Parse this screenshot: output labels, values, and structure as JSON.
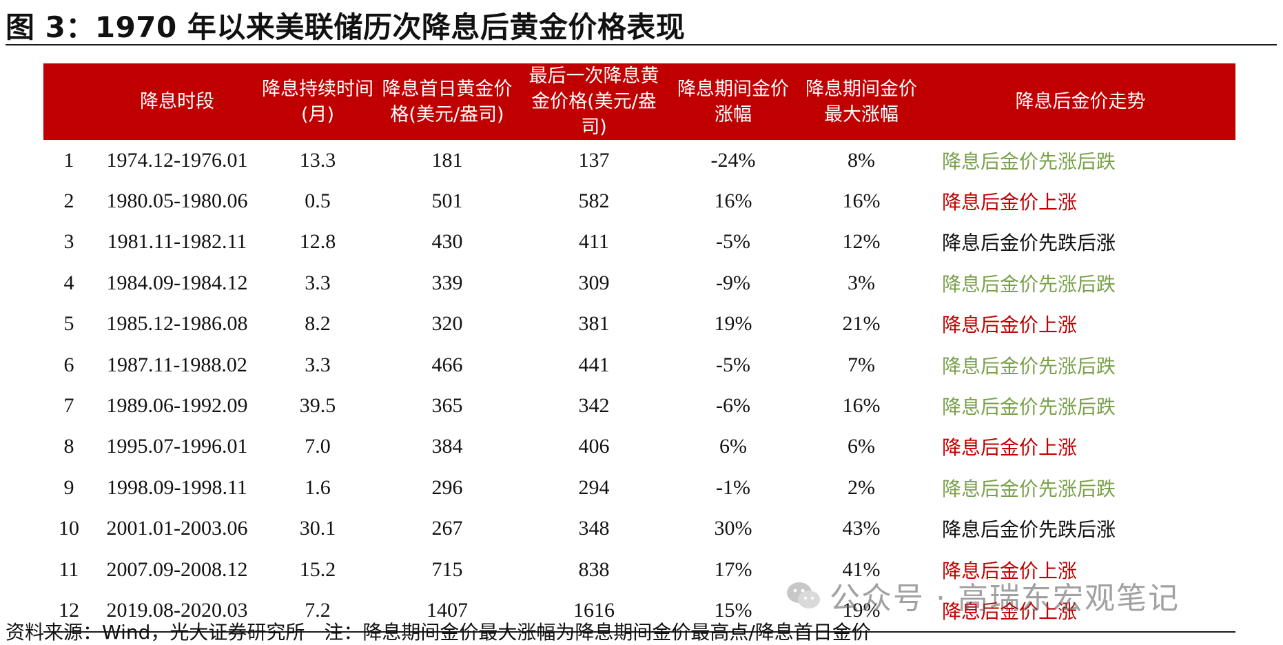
{
  "figure_title": "图 3：1970 年以来美联储历次降息后黄金价格表现",
  "table": {
    "headers": [
      "",
      "降息时段",
      "降息持续时间(月)",
      "降息首日黄金价格(美元/盎司)",
      "最后一次降息黄金价格(美元/盎司)",
      "降息期间金价涨幅",
      "降息期间金价最大涨幅",
      "降息后金价走势"
    ],
    "rows": [
      {
        "no": "1",
        "period": "1974.12-1976.01",
        "months": "13.3",
        "first_day_price": "181",
        "last_cut_price": "137",
        "change": "-24%",
        "max_gain": "8%",
        "trend": "降息后金价先涨后跌",
        "trend_color": "#7aa04a"
      },
      {
        "no": "2",
        "period": "1980.05-1980.06",
        "months": "0.5",
        "first_day_price": "501",
        "last_cut_price": "582",
        "change": "16%",
        "max_gain": "16%",
        "trend": "降息后金价上涨",
        "trend_color": "#c00000"
      },
      {
        "no": "3",
        "period": "1981.11-1982.11",
        "months": "12.8",
        "first_day_price": "430",
        "last_cut_price": "411",
        "change": "-5%",
        "max_gain": "12%",
        "trend": "降息后金价先跌后涨",
        "trend_color": "#111111"
      },
      {
        "no": "4",
        "period": "1984.09-1984.12",
        "months": "3.3",
        "first_day_price": "339",
        "last_cut_price": "309",
        "change": "-9%",
        "max_gain": "3%",
        "trend": "降息后金价先涨后跌",
        "trend_color": "#7aa04a"
      },
      {
        "no": "5",
        "period": "1985.12-1986.08",
        "months": "8.2",
        "first_day_price": "320",
        "last_cut_price": "381",
        "change": "19%",
        "max_gain": "21%",
        "trend": "降息后金价上涨",
        "trend_color": "#c00000"
      },
      {
        "no": "6",
        "period": "1987.11-1988.02",
        "months": "3.3",
        "first_day_price": "466",
        "last_cut_price": "441",
        "change": "-5%",
        "max_gain": "7%",
        "trend": "降息后金价先涨后跌",
        "trend_color": "#7aa04a"
      },
      {
        "no": "7",
        "period": "1989.06-1992.09",
        "months": "39.5",
        "first_day_price": "365",
        "last_cut_price": "342",
        "change": "-6%",
        "max_gain": "16%",
        "trend": "降息后金价先涨后跌",
        "trend_color": "#7aa04a"
      },
      {
        "no": "8",
        "period": "1995.07-1996.01",
        "months": "7.0",
        "first_day_price": "384",
        "last_cut_price": "406",
        "change": "6%",
        "max_gain": "6%",
        "trend": "降息后金价上涨",
        "trend_color": "#c00000"
      },
      {
        "no": "9",
        "period": "1998.09-1998.11",
        "months": "1.6",
        "first_day_price": "296",
        "last_cut_price": "294",
        "change": "-1%",
        "max_gain": "2%",
        "trend": "降息后金价先涨后跌",
        "trend_color": "#7aa04a"
      },
      {
        "no": "10",
        "period": "2001.01-2003.06",
        "months": "30.1",
        "first_day_price": "267",
        "last_cut_price": "348",
        "change": "30%",
        "max_gain": "43%",
        "trend": "降息后金价先跌后涨",
        "trend_color": "#111111"
      },
      {
        "no": "11",
        "period": "2007.09-2008.12",
        "months": "15.2",
        "first_day_price": "715",
        "last_cut_price": "838",
        "change": "17%",
        "max_gain": "41%",
        "trend": "降息后金价上涨",
        "trend_color": "#c00000"
      },
      {
        "no": "12",
        "period": "2019.08-2020.03",
        "months": "7.2",
        "first_day_price": "1407",
        "last_cut_price": "1616",
        "change": "15%",
        "max_gain": "19%",
        "trend": "降息后金价上涨",
        "trend_color": "#c00000"
      }
    ]
  },
  "footnote": "资料来源：Wind，光大证券研究所　注：降息期间金价最大涨幅为降息期间金价最高点/降息首日金价",
  "watermark": "公众号 · 高瑞东宏观笔记",
  "watermark_icon": "wechat-icon"
}
